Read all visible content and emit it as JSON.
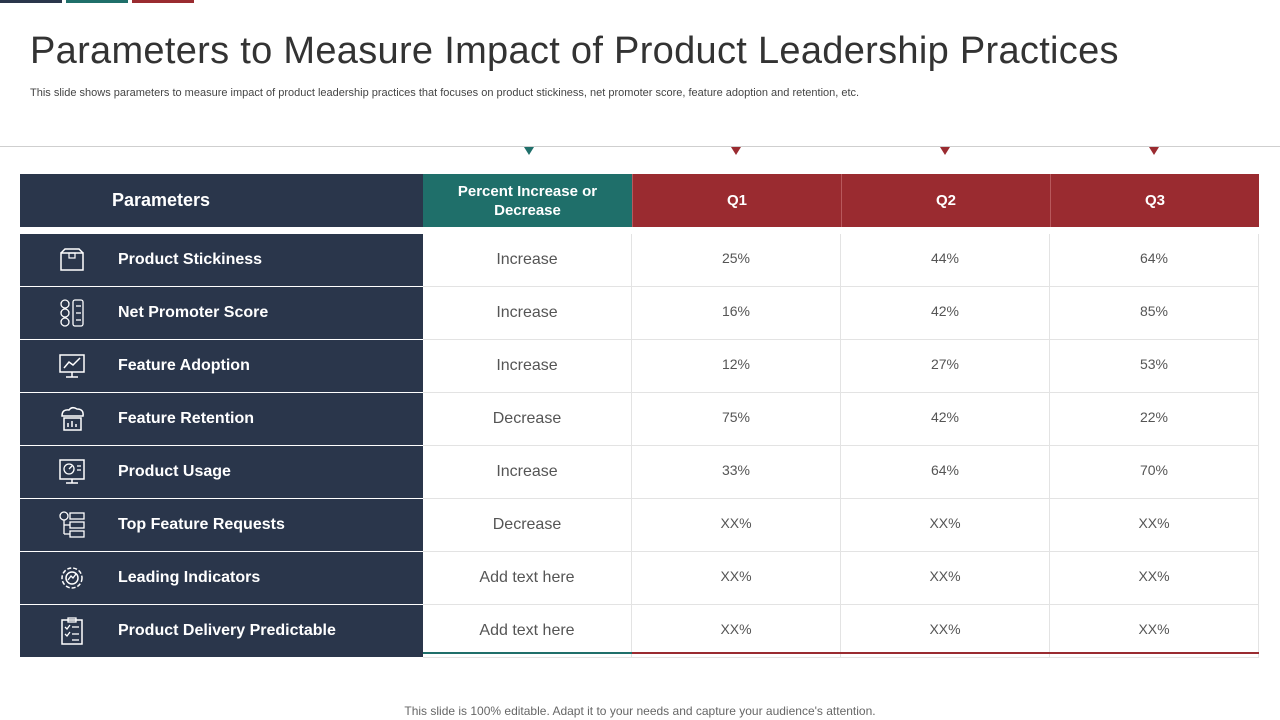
{
  "colors": {
    "navy": "#2a364b",
    "teal": "#1f6f6a",
    "red": "#9a2b30"
  },
  "title": "Parameters to Measure Impact of Product Leadership Practices",
  "subtitle": "This slide shows parameters to measure impact of product leadership practices that focuses on product stickiness, net promoter score, feature adoption and retention, etc.",
  "table": {
    "headers": {
      "parameters": "Parameters",
      "percent": "Percent Increase or Decrease",
      "q1": "Q1",
      "q2": "Q2",
      "q3": "Q3"
    },
    "rows": [
      {
        "icon": "box-icon",
        "parameter": "Product Stickiness",
        "change": "Increase",
        "q1": "25%",
        "q2": "44%",
        "q3": "64%"
      },
      {
        "icon": "rating-faces-icon",
        "parameter": "Net Promoter Score",
        "change": "Increase",
        "q1": "16%",
        "q2": "42%",
        "q3": "85%"
      },
      {
        "icon": "monitor-chart-icon",
        "parameter": "Feature Adoption",
        "change": "Increase",
        "q1": "12%",
        "q2": "27%",
        "q3": "53%"
      },
      {
        "icon": "cloud-chart-icon",
        "parameter": "Feature Retention",
        "change": "Decrease",
        "q1": "75%",
        "q2": "42%",
        "q3": "22%"
      },
      {
        "icon": "dashboard-monitor-icon",
        "parameter": "Product Usage",
        "change": "Increase",
        "q1": "33%",
        "q2": "64%",
        "q3": "70%"
      },
      {
        "icon": "request-list-icon",
        "parameter": "Top Feature Requests",
        "change": "Decrease",
        "q1": "XX%",
        "q2": "XX%",
        "q3": "XX%"
      },
      {
        "icon": "gear-indicator-icon",
        "parameter": "Leading Indicators",
        "change": "Add text here",
        "q1": "XX%",
        "q2": "XX%",
        "q3": "XX%"
      },
      {
        "icon": "clipboard-checklist-icon",
        "parameter": "Product Delivery Predictable",
        "change": "Add text here",
        "q1": "XX%",
        "q2": "XX%",
        "q3": "XX%"
      }
    ]
  },
  "footer": "This slide is 100% editable. Adapt it to your needs and capture your audience's attention."
}
